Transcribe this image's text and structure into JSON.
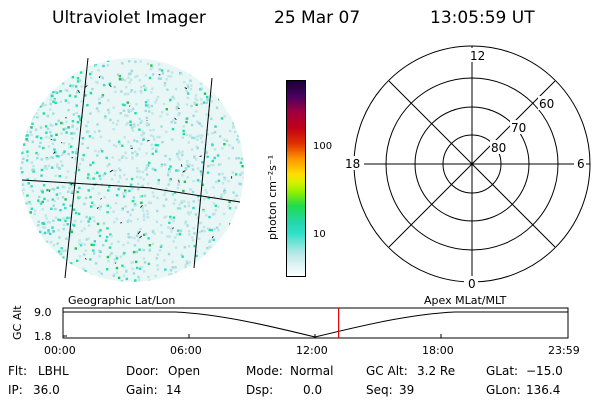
{
  "header": {
    "title": "Ultraviolet Imager",
    "date": "25 Mar 07",
    "time": "13:05:59 UT"
  },
  "colorbar": {
    "tick_high": "100",
    "tick_low": "10",
    "unit": "photon cm⁻²s⁻¹",
    "colors": [
      "#ffffff",
      "#d0eeee",
      "#2ee0c8",
      "#20dc4a",
      "#d8f000",
      "#ff9600",
      "#c00018",
      "#1a0038"
    ]
  },
  "polar_plot": {
    "label_top": "12",
    "label_bottom": "0",
    "label_left": "18",
    "label_right": "6",
    "lat_60": "60",
    "lat_70": "70",
    "lat_80": "80"
  },
  "timeline": {
    "left_title": "Geographic Lat/Lon",
    "right_title": "Apex MLat/MLT",
    "y_axis_label": "GC Alt",
    "y_top": "9.0",
    "y_bottom": "1.8",
    "x_ticks": [
      "00:00",
      "06:00",
      "12:00",
      "18:00",
      "23:59"
    ],
    "marker_color": "#e00000",
    "current_time_hours": 13.1
  },
  "footer": {
    "flt_label": "Flt:",
    "flt_value": "LBHL",
    "ip_label": "IP:",
    "ip_value": "36.0",
    "door_label": "Door:",
    "door_value": "Open",
    "gain_label": "Gain:",
    "gain_value": "14",
    "mode_label": "Mode:",
    "mode_value": "Normal",
    "dsp_label": "Dsp:",
    "dsp_value": "0.0",
    "gcalt_label": "GC Alt:",
    "gcalt_value": "3.2 Re",
    "seq_label": "Seq:",
    "seq_value": "39",
    "glat_label": "GLat:",
    "glat_value": "−15.0",
    "glon_label": "GLon:",
    "glon_value": "136.4"
  }
}
